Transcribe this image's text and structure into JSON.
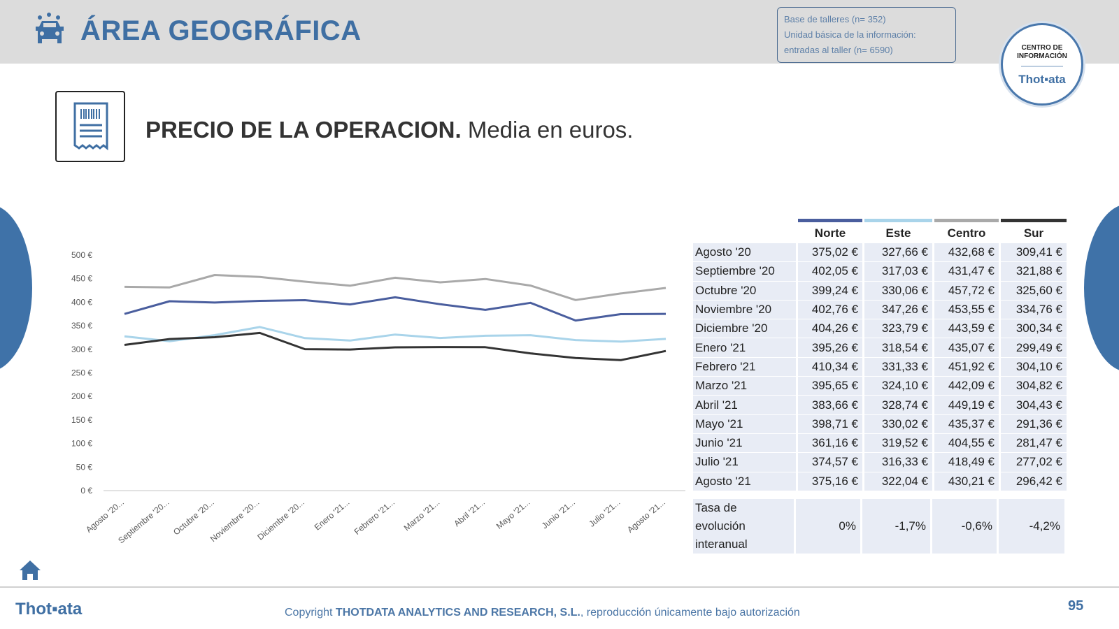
{
  "header": {
    "title": "ÁREA GEOGRÁFICA",
    "info_lines": [
      "Base de talleres (n= 352)",
      "Unidad básica de la información:",
      "entradas al taller (n= 6590)"
    ],
    "badge_line1": "CENTRO DE",
    "badge_line2": "INFORMACIÓN",
    "badge_brand": "Thot▪ata"
  },
  "subtitle": {
    "bold": "PRECIO DE LA OPERACION.",
    "normal": " Media en euros."
  },
  "colors": {
    "norte": "#4a5e9e",
    "este": "#a9d4ea",
    "centro": "#a9a9a9",
    "sur": "#333333",
    "accent": "#3f6fa3"
  },
  "chart_data": {
    "type": "line",
    "categories": [
      "Agosto '20...",
      "Septiembre '20...",
      "Octubre '20...",
      "Noviembre '20...",
      "Diciembre '20...",
      "Enero '21...",
      "Febrero '21...",
      "Marzo '21...",
      "Abril '21...",
      "Mayo '21...",
      "Junio '21...",
      "Julio '21...",
      "Agosto '21..."
    ],
    "ylim": [
      0,
      500
    ],
    "yticks": [
      "0 €",
      "50 €",
      "100 €",
      "150 €",
      "200 €",
      "250 €",
      "300 €",
      "350 €",
      "400 €",
      "450 €",
      "500 €"
    ],
    "series": [
      {
        "name": "Norte",
        "values": [
          375.02,
          402.05,
          399.24,
          402.76,
          404.26,
          395.26,
          410.34,
          395.65,
          383.66,
          398.71,
          361.16,
          374.57,
          375.16
        ]
      },
      {
        "name": "Este",
        "values": [
          327.66,
          317.03,
          330.06,
          347.26,
          323.79,
          318.54,
          331.33,
          324.1,
          328.74,
          330.02,
          319.52,
          316.33,
          322.04
        ]
      },
      {
        "name": "Centro",
        "values": [
          432.68,
          431.47,
          457.72,
          453.55,
          443.59,
          435.07,
          451.92,
          442.09,
          449.19,
          435.37,
          404.55,
          418.49,
          430.21
        ]
      },
      {
        "name": "Sur",
        "values": [
          309.41,
          321.88,
          325.6,
          334.76,
          300.34,
          299.49,
          304.1,
          304.82,
          304.43,
          291.36,
          281.47,
          277.02,
          296.42
        ]
      }
    ],
    "grid": false
  },
  "table": {
    "headers": [
      "Norte",
      "Este",
      "Centro",
      "Sur"
    ],
    "rows": [
      {
        "month": "Agosto '20",
        "values": [
          "375,02 €",
          "327,66 €",
          "432,68 €",
          "309,41 €"
        ]
      },
      {
        "month": "Septiembre '20",
        "values": [
          "402,05 €",
          "317,03 €",
          "431,47 €",
          "321,88 €"
        ]
      },
      {
        "month": "Octubre '20",
        "values": [
          "399,24 €",
          "330,06 €",
          "457,72 €",
          "325,60 €"
        ]
      },
      {
        "month": "Noviembre '20",
        "values": [
          "402,76 €",
          "347,26 €",
          "453,55 €",
          "334,76 €"
        ]
      },
      {
        "month": "Diciembre '20",
        "values": [
          "404,26 €",
          "323,79 €",
          "443,59 €",
          "300,34 €"
        ]
      },
      {
        "month": "Enero '21",
        "values": [
          "395,26 €",
          "318,54 €",
          "435,07 €",
          "299,49 €"
        ]
      },
      {
        "month": "Febrero '21",
        "values": [
          "410,34 €",
          "331,33 €",
          "451,92 €",
          "304,10 €"
        ]
      },
      {
        "month": "Marzo '21",
        "values": [
          "395,65 €",
          "324,10 €",
          "442,09 €",
          "304,82 €"
        ]
      },
      {
        "month": "Abril '21",
        "values": [
          "383,66 €",
          "328,74 €",
          "449,19 €",
          "304,43 €"
        ]
      },
      {
        "month": "Mayo '21",
        "values": [
          "398,71 €",
          "330,02 €",
          "435,37 €",
          "291,36 €"
        ]
      },
      {
        "month": "Junio '21",
        "values": [
          "361,16 €",
          "319,52 €",
          "404,55 €",
          "281,47 €"
        ]
      },
      {
        "month": "Julio '21",
        "values": [
          "374,57 €",
          "316,33 €",
          "418,49 €",
          "277,02 €"
        ]
      },
      {
        "month": "Agosto '21",
        "values": [
          "375,16 €",
          "322,04 €",
          "430,21 €",
          "296,42 €"
        ]
      }
    ],
    "tasa_label_lines": [
      "Tasa de",
      "evolución",
      "interanual"
    ],
    "tasa_values": [
      "0%",
      "-1,7%",
      "-0,6%",
      "-4,2%"
    ]
  },
  "footer": {
    "logo": "Thot▪ata",
    "copyright_pre": "Copyright ",
    "copyright_bold": "THOTDATA ANALYTICS AND RESEARCH, S.L.",
    "copyright_post": ", reproducción únicamente bajo autorización",
    "page_number": "95"
  }
}
